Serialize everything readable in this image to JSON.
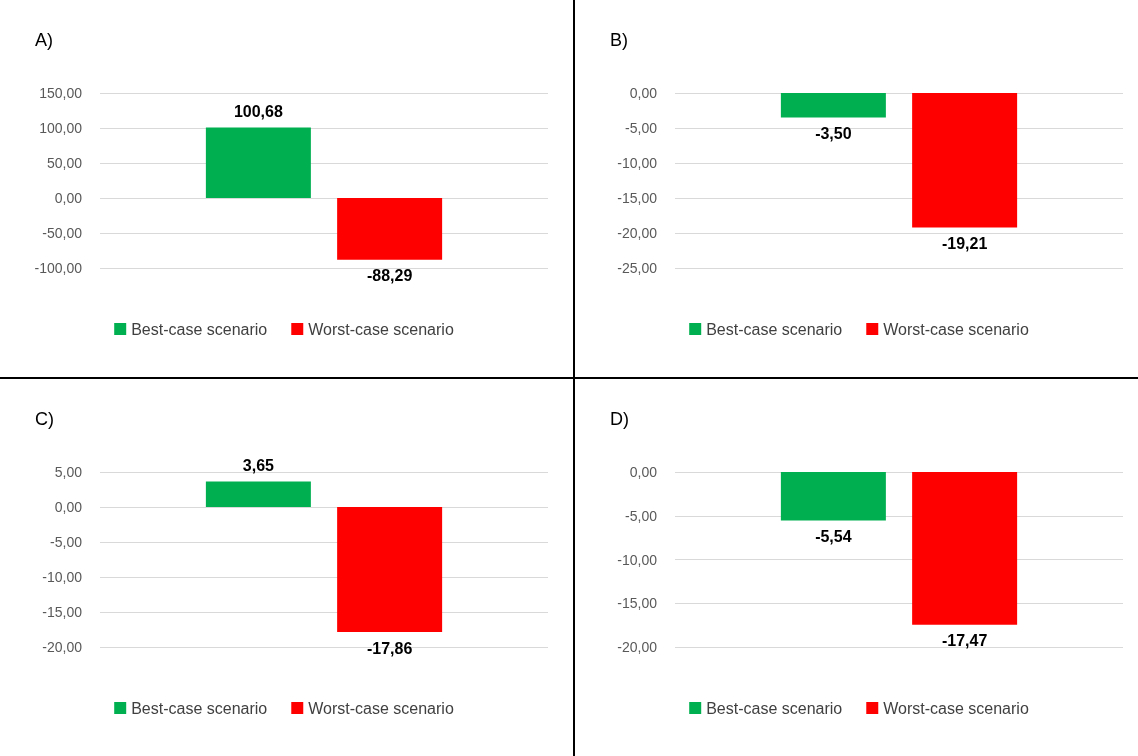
{
  "chart_data": [
    {
      "type": "bar",
      "title": "A)",
      "categories": [
        null
      ],
      "series": [
        {
          "name": "Best-case scenario",
          "color": "#00b050",
          "values": [
            100.68
          ],
          "value_labels": [
            "100,68"
          ]
        },
        {
          "name": "Worst-case scenario",
          "color": "#ff0000",
          "values": [
            -88.29
          ],
          "value_labels": [
            "-88,29"
          ]
        }
      ],
      "ylim": [
        -100,
        150
      ],
      "yticks": [
        {
          "value": -100,
          "label": "-100,00"
        },
        {
          "value": -50,
          "label": "-50,00"
        },
        {
          "value": 0,
          "label": "0,00"
        },
        {
          "value": 50,
          "label": "50,00"
        },
        {
          "value": 100,
          "label": "100,00"
        },
        {
          "value": 150,
          "label": "150,00"
        }
      ],
      "grid": "y",
      "legend": "bottom"
    },
    {
      "type": "bar",
      "title": "B)",
      "categories": [
        null
      ],
      "series": [
        {
          "name": "Best-case scenario",
          "color": "#00b050",
          "values": [
            -3.5
          ],
          "value_labels": [
            "-3,50"
          ]
        },
        {
          "name": "Worst-case scenario",
          "color": "#ff0000",
          "values": [
            -19.21
          ],
          "value_labels": [
            "-19,21"
          ]
        }
      ],
      "ylim": [
        -25,
        0
      ],
      "yticks": [
        {
          "value": -25,
          "label": "-25,00"
        },
        {
          "value": -20,
          "label": "-20,00"
        },
        {
          "value": -15,
          "label": "-15,00"
        },
        {
          "value": -10,
          "label": "-10,00"
        },
        {
          "value": -5,
          "label": "-5,00"
        },
        {
          "value": 0,
          "label": "0,00"
        }
      ],
      "grid": "y",
      "legend": "bottom"
    },
    {
      "type": "bar",
      "title": "C)",
      "categories": [
        null
      ],
      "series": [
        {
          "name": "Best-case scenario",
          "color": "#00b050",
          "values": [
            3.65
          ],
          "value_labels": [
            "3,65"
          ]
        },
        {
          "name": "Worst-case scenario",
          "color": "#ff0000",
          "values": [
            -17.86
          ],
          "value_labels": [
            "-17,86"
          ]
        }
      ],
      "ylim": [
        -20,
        5
      ],
      "yticks": [
        {
          "value": -20,
          "label": "-20,00"
        },
        {
          "value": -15,
          "label": "-15,00"
        },
        {
          "value": -10,
          "label": "-10,00"
        },
        {
          "value": -5,
          "label": "-5,00"
        },
        {
          "value": 0,
          "label": "0,00"
        },
        {
          "value": 5,
          "label": "5,00"
        }
      ],
      "grid": "y",
      "legend": "bottom"
    },
    {
      "type": "bar",
      "title": "D)",
      "categories": [
        null
      ],
      "series": [
        {
          "name": "Best-case scenario",
          "color": "#00b050",
          "values": [
            -5.54
          ],
          "value_labels": [
            "-5,54"
          ]
        },
        {
          "name": "Worst-case scenario",
          "color": "#ff0000",
          "values": [
            -17.47
          ],
          "value_labels": [
            "-17,47"
          ]
        }
      ],
      "ylim": [
        -20,
        0
      ],
      "yticks": [
        {
          "value": -20,
          "label": "-20,00"
        },
        {
          "value": -15,
          "label": "-15,00"
        },
        {
          "value": -10,
          "label": "-10,00"
        },
        {
          "value": -5,
          "label": "-5,00"
        },
        {
          "value": 0,
          "label": "0,00"
        }
      ],
      "grid": "y",
      "legend": "bottom"
    }
  ]
}
